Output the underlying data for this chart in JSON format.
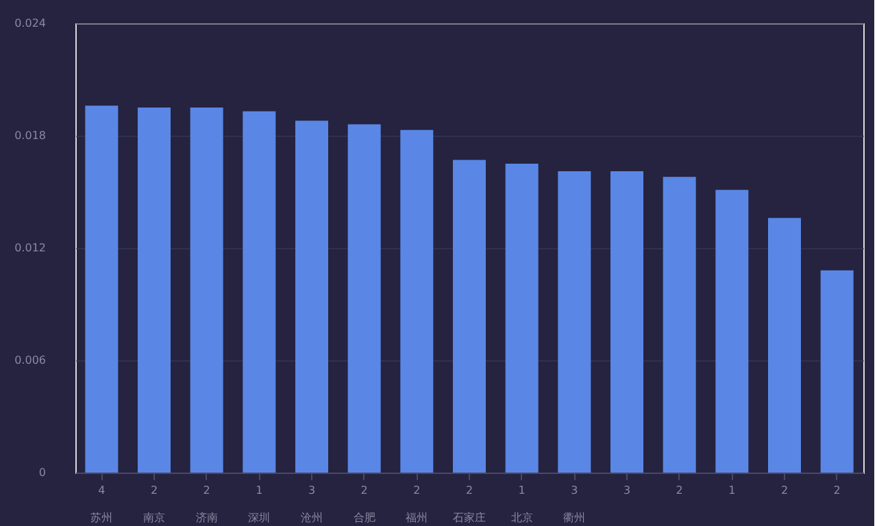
{
  "chart_data": {
    "type": "bar",
    "categories": [
      "4\n苏州",
      "2\n南京",
      "2\n济南",
      "1\n深圳",
      "3\n沧州",
      "2\n合肥",
      "2\n福州",
      "2\n石家庄",
      "1\n北京",
      "3\n衢州",
      "3",
      "2",
      "1",
      "2",
      "2"
    ],
    "values": [
      0.0196,
      0.0195,
      0.0195,
      0.0193,
      0.0188,
      0.0186,
      0.0183,
      0.0167,
      0.0165,
      0.0161,
      0.0161,
      0.0158,
      0.0151,
      0.0136,
      0.0108
    ],
    "color": "#5a87e6",
    "ylim": [
      0,
      0.024
    ],
    "yticks": [
      {
        "value": 0,
        "label": "0"
      },
      {
        "value": 0.006,
        "label": "0.006"
      },
      {
        "value": 0.012,
        "label": "0.012"
      },
      {
        "value": 0.018,
        "label": "0.018"
      },
      {
        "value": 0.024,
        "label": "0.024"
      }
    ],
    "grid": "y"
  }
}
